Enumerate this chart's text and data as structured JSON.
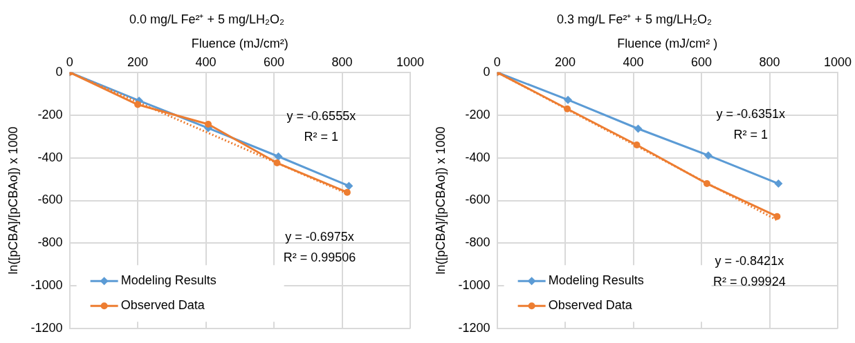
{
  "chart_data": [
    {
      "type": "line",
      "title": "0.0 mg/L Fe²⁺ + 5 mg/LH₂O₂",
      "xlabel": "Fluence (mJ/cm²)",
      "ylabel": "ln([pCBA]/[pCBAo]) x 1000",
      "xlim": [
        0,
        1000
      ],
      "xticks": [
        0,
        200,
        400,
        600,
        800,
        1000
      ],
      "ylim": [
        -1200,
        0
      ],
      "yticks": [
        -1200,
        -1000,
        -800,
        -600,
        -400,
        -200,
        0
      ],
      "grid": true,
      "legend": "bottom left",
      "series": [
        {
          "name": "Modeling Results",
          "color": "#5b9bd5",
          "marker": "diamond",
          "x": [
            0,
            204,
            407,
            613,
            820
          ],
          "values": [
            0,
            -133,
            -261,
            -394,
            -532
          ]
        },
        {
          "name": "Observed Data",
          "color": "#ed7d31",
          "marker": "circle",
          "x": [
            0,
            200,
            407,
            609,
            815
          ],
          "values": [
            0,
            -151,
            -243,
            -424,
            -562
          ]
        },
        {
          "color": "#ed7d31",
          "marker": "none",
          "line_style": "dotted",
          "x": [
            0,
            815
          ],
          "values": [
            0,
            -568
          ]
        }
      ],
      "annotations": [
        "y = -0.6555x",
        "R² = 1",
        "y = -0.6975x",
        "R² = 0.99506"
      ]
    },
    {
      "type": "line",
      "title": "0.3 mg/L Fe²⁺ + 5 mg/LH₂O₂",
      "xlabel": "Fluence (mJ/cm² )",
      "ylabel": "ln([pCBA]/[pCBAo]) x 1000",
      "xlim": [
        0,
        1000
      ],
      "xticks": [
        0,
        200,
        400,
        600,
        800,
        1000
      ],
      "ylim": [
        -1200,
        0
      ],
      "yticks": [
        -1200,
        -1000,
        -800,
        -600,
        -400,
        -200,
        0
      ],
      "grid": true,
      "legend": "bottom left",
      "series": [
        {
          "name": "Modeling Results",
          "color": "#5b9bd5",
          "marker": "diamond",
          "x": [
            0,
            208,
            414,
            620,
            826
          ],
          "values": [
            0,
            -129,
            -264,
            -389,
            -521
          ]
        },
        {
          "name": "Observed Data",
          "color": "#ed7d31",
          "marker": "circle",
          "x": [
            0,
            206,
            410,
            616,
            822
          ],
          "values": [
            0,
            -171,
            -340,
            -521,
            -675
          ]
        },
        {
          "color": "#ed7d31",
          "marker": "none",
          "line_style": "dotted",
          "x": [
            0,
            822
          ],
          "values": [
            0,
            -692
          ]
        }
      ],
      "annotations": [
        "y = -0.6351x",
        "R² = 1",
        "y = -0.8421x",
        "R² = 0.99924"
      ]
    }
  ]
}
